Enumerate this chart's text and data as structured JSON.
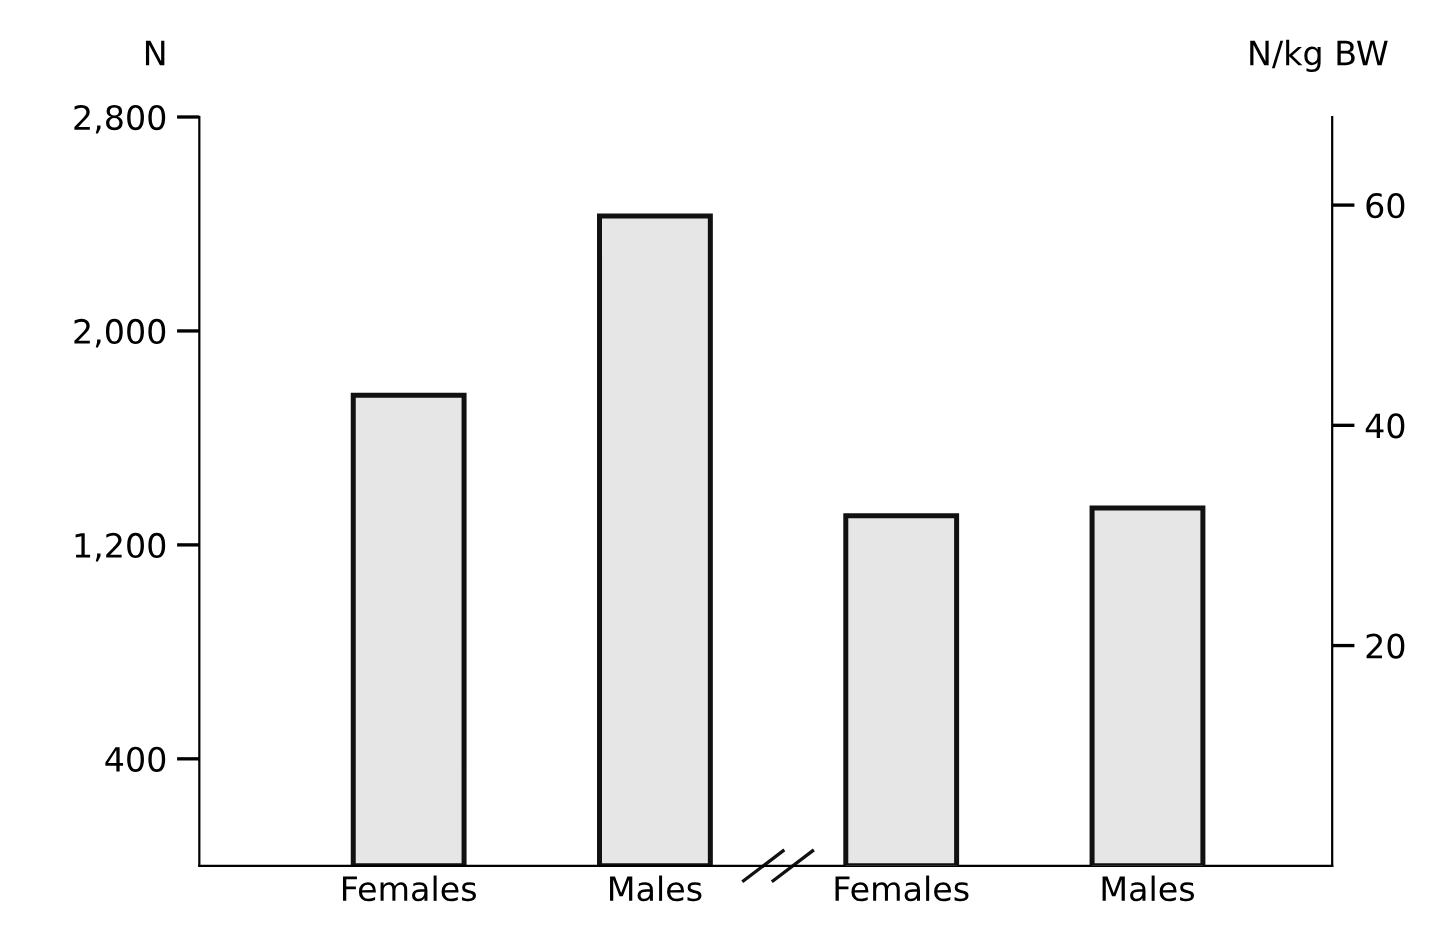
{
  "chart_data": {
    "type": "bar",
    "ylabel": "N",
    "y2label": "N/kg BW",
    "categories": [
      "Females",
      "Males",
      "Females",
      "Males"
    ],
    "series": [
      {
        "color": "#e6e6e6",
        "values": [
          1760,
          2430,
          null,
          null
        ]
      },
      {
        "color": "#e6e6e6",
        "axis": "y2",
        "values": [
          null,
          null,
          31.8,
          32.5
        ]
      }
    ],
    "ylim": [
      0,
      2800
    ],
    "yticks": [
      {
        "value": 400,
        "label": "400"
      },
      {
        "value": 1200,
        "label": "1,200"
      },
      {
        "value": 2000,
        "label": "2,000"
      },
      {
        "value": 2800,
        "label": "2,800"
      }
    ],
    "y2lim": [
      0,
      68
    ],
    "y2ticks": [
      20,
      40,
      60
    ],
    "grid": false,
    "legend": false
  }
}
